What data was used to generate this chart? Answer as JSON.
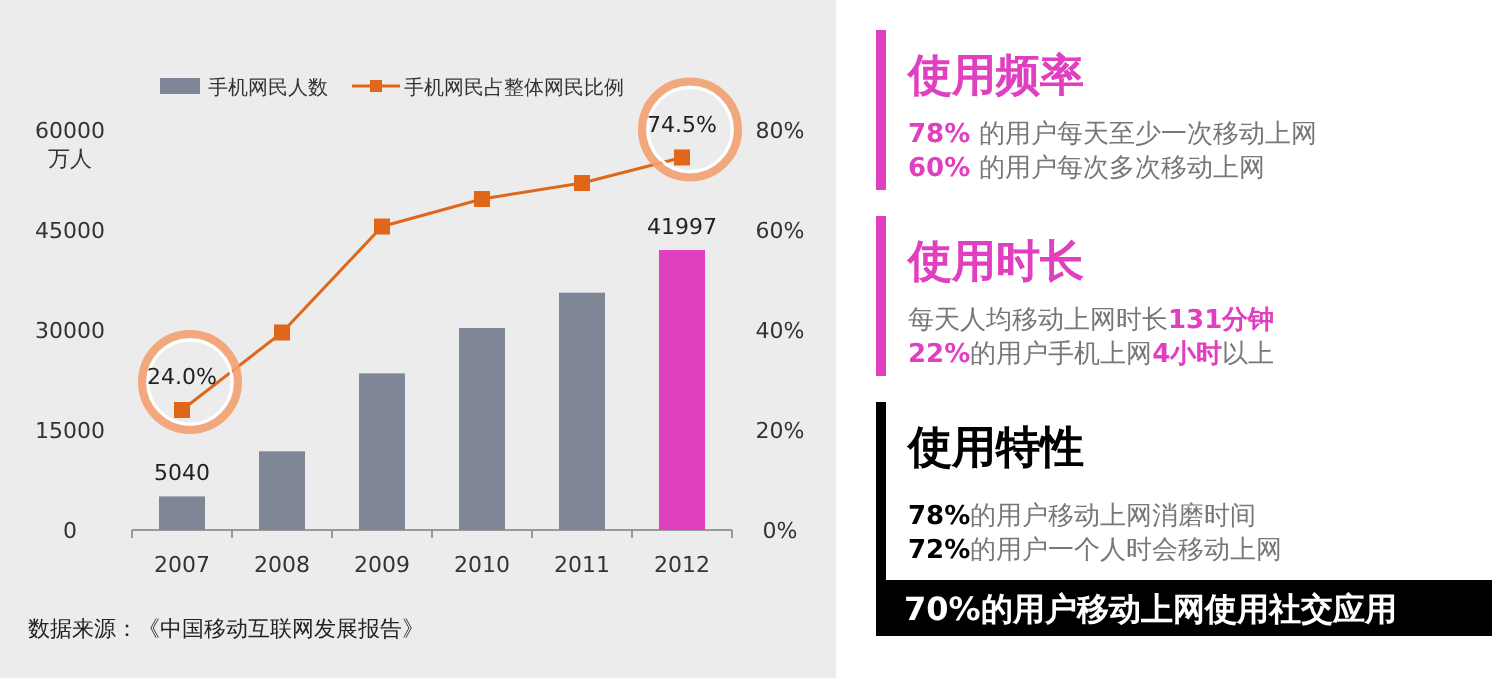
{
  "chart_data": [
    {
      "type": "bar",
      "categories": [
        "2007",
        "2008",
        "2009",
        "2010",
        "2011",
        "2012"
      ],
      "series": [
        {
          "name": "手机网民人数",
          "type": "bar",
          "color": "#7f8796",
          "colors": [
            "#7f8796",
            "#7f8796",
            "#7f8796",
            "#7f8796",
            "#7f8796",
            "#e040c0"
          ],
          "values": [
            5040,
            11800,
            23500,
            30300,
            35600,
            41997
          ],
          "value_labels": [
            "5040",
            null,
            null,
            null,
            null,
            "41997"
          ]
        },
        {
          "name": "手机网民占整体网民比例",
          "type": "line",
          "axis": "y2",
          "color": "#e0661a",
          "marker": "square",
          "values": [
            24.0,
            39.5,
            60.7,
            66.2,
            69.4,
            74.5
          ],
          "value_labels": [
            "24.0%",
            null,
            null,
            null,
            null,
            "74.5%"
          ]
        }
      ],
      "ylabel": "万人",
      "ylim": [
        0,
        60000
      ],
      "yticks": [
        0,
        15000,
        30000,
        45000,
        60000
      ],
      "y2lim": [
        0,
        80
      ],
      "y2ticks": [
        {
          "value": 0,
          "label": "0%"
        },
        {
          "value": 20,
          "label": "20%"
        },
        {
          "value": 40,
          "label": "40%"
        },
        {
          "value": 60,
          "label": "60%"
        },
        {
          "value": 80,
          "label": "80%"
        }
      ],
      "legend": "top",
      "grid": false,
      "annotations": [
        "数据来源：《中国移动互联网发展报告》"
      ]
    },
    {
      "type": "other",
      "title": "使用频率",
      "color": "#e040c0",
      "annotations": [
        "**78%** 的用户每天至少一次移动上网",
        "**60%** 的用户每次多次移动上网"
      ]
    },
    {
      "type": "other",
      "title": "使用时长",
      "color": "#e040c0",
      "annotations": [
        "每天人均移动上网时长**131分钟**",
        "**22%**的用户手机上网**4小时**以上"
      ]
    },
    {
      "type": "other",
      "title": "使用特性",
      "color": "#000000",
      "annotations": [
        "**78%**的用户移动上网消磨时间",
        "**72%**的用户一个人时会移动上网",
        "**70%**的用户移动上网使用社交应用"
      ]
    }
  ]
}
